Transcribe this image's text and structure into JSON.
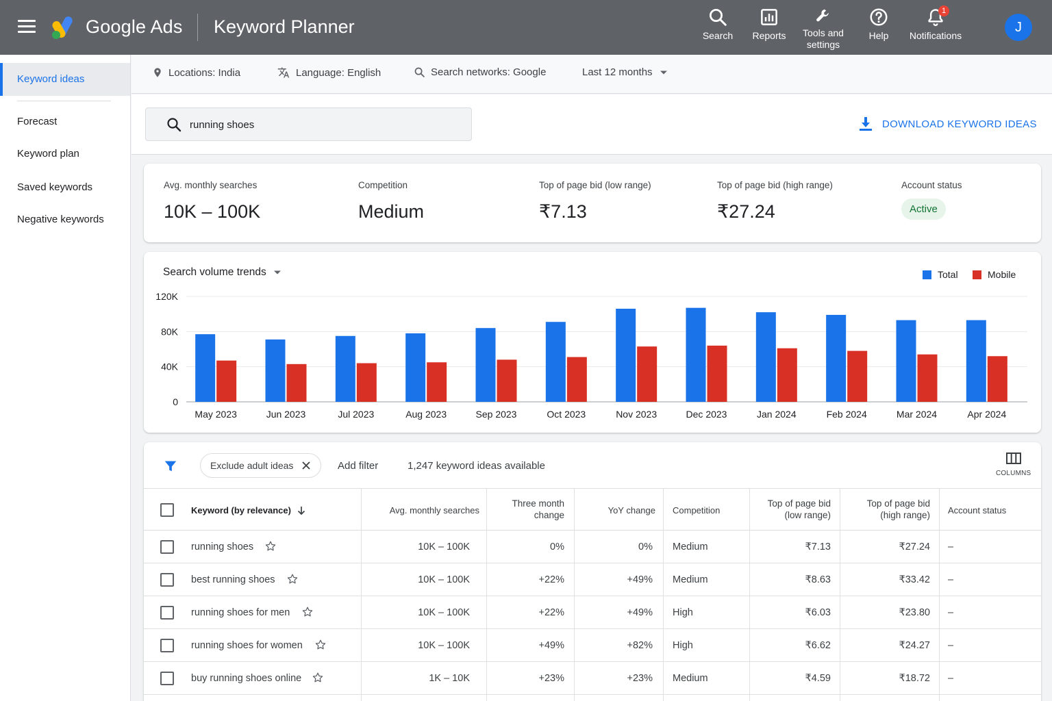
{
  "app": {
    "brand": "Google Ads",
    "product": "Keyword Planner",
    "top_actions": [
      {
        "label": "Search",
        "icon": "search-icon"
      },
      {
        "label": "Reports",
        "icon": "reports-icon"
      },
      {
        "label": "Tools and settings",
        "icon": "wrench-icon"
      },
      {
        "label": "Help",
        "icon": "help-icon"
      },
      {
        "label": "Notifications",
        "icon": "bell-icon",
        "badge": "1"
      }
    ],
    "avatar_letter": "J"
  },
  "sidebar": {
    "items": [
      {
        "label": "Keyword ideas",
        "active": true
      },
      {
        "label": "Forecast"
      },
      {
        "label": "Keyword plan"
      },
      {
        "label": "Saved keywords"
      },
      {
        "label": "Negative keywords"
      }
    ]
  },
  "filters": {
    "location": "Locations: India",
    "language": "Language: English",
    "network": "Search networks: Google",
    "date_range": "Last 12 months"
  },
  "search": {
    "query": "running shoes",
    "download_label": "DOWNLOAD KEYWORD IDEAS"
  },
  "metrics": [
    {
      "label": "Avg. monthly searches",
      "value": "10K – 100K"
    },
    {
      "label": "Competition",
      "value": "Medium"
    },
    {
      "label": "Top of page bid (low range)",
      "value": "₹7.13"
    },
    {
      "label": "Top of page bid (high range)",
      "value": "₹27.24"
    },
    {
      "label": "Account status",
      "value": "Active"
    }
  ],
  "chart": {
    "title": "Search volume trends",
    "legend": [
      {
        "name": "Total",
        "color": "#1a73e8"
      },
      {
        "name": "Mobile",
        "color": "#d93025"
      }
    ]
  },
  "chart_data": {
    "type": "bar",
    "categories": [
      "May 2023",
      "Jun 2023",
      "Jul 2023",
      "Aug 2023",
      "Sep 2023",
      "Oct 2023",
      "Nov 2023",
      "Dec 2023",
      "Jan 2024",
      "Feb 2024",
      "Mar 2024",
      "Apr 2024"
    ],
    "series": [
      {
        "name": "Total",
        "values": [
          77000,
          71000,
          75000,
          78000,
          84000,
          91000,
          106000,
          107000,
          102000,
          99000,
          93000,
          93000
        ]
      },
      {
        "name": "Mobile",
        "values": [
          47000,
          43000,
          44000,
          45000,
          48000,
          51000,
          63000,
          64000,
          61000,
          58000,
          54000,
          52000
        ]
      }
    ],
    "y_ticks": [
      "0",
      "40K",
      "80K",
      "120K"
    ],
    "ylim": [
      0,
      120000
    ],
    "grid": true,
    "legend_position": "top-right"
  },
  "table": {
    "toolbar": {
      "chip": "Exclude adult ideas",
      "add_filter": "Add filter",
      "count": "1,247 keyword ideas available",
      "columns_label": "COLUMNS"
    },
    "headers": {
      "keyword": "Keyword (by relevance)",
      "avg": "Avg. monthly searches",
      "three_month_1": "Three month",
      "three_month_2": "change",
      "yoy": "YoY change",
      "competition": "Competition",
      "low_1": "Top of page bid",
      "low_2": "(low range)",
      "high_1": "Top of page bid",
      "high_2": "(high range)",
      "status": "Account status"
    },
    "rows": [
      {
        "keyword": "running shoes",
        "avg": "10K – 100K",
        "three": "0%",
        "yoy": "0%",
        "comp": "Medium",
        "low": "₹7.13",
        "high": "₹27.24",
        "status": "–"
      },
      {
        "keyword": "best running shoes",
        "avg": "10K – 100K",
        "three": "+22%",
        "yoy": "+49%",
        "comp": "Medium",
        "low": "₹8.63",
        "high": "₹33.42",
        "status": "–"
      },
      {
        "keyword": "running shoes for men",
        "avg": "10K – 100K",
        "three": "+22%",
        "yoy": "+49%",
        "comp": "High",
        "low": "₹6.03",
        "high": "₹23.80",
        "status": "–"
      },
      {
        "keyword": "running shoes for women",
        "avg": "10K – 100K",
        "three": "+49%",
        "yoy": "+82%",
        "comp": "High",
        "low": "₹6.62",
        "high": "₹24.27",
        "status": "–"
      },
      {
        "keyword": "buy running shoes online",
        "avg": "1K – 10K",
        "three": "+23%",
        "yoy": "+23%",
        "comp": "Medium",
        "low": "₹4.59",
        "high": "₹18.72",
        "status": "–"
      }
    ]
  }
}
